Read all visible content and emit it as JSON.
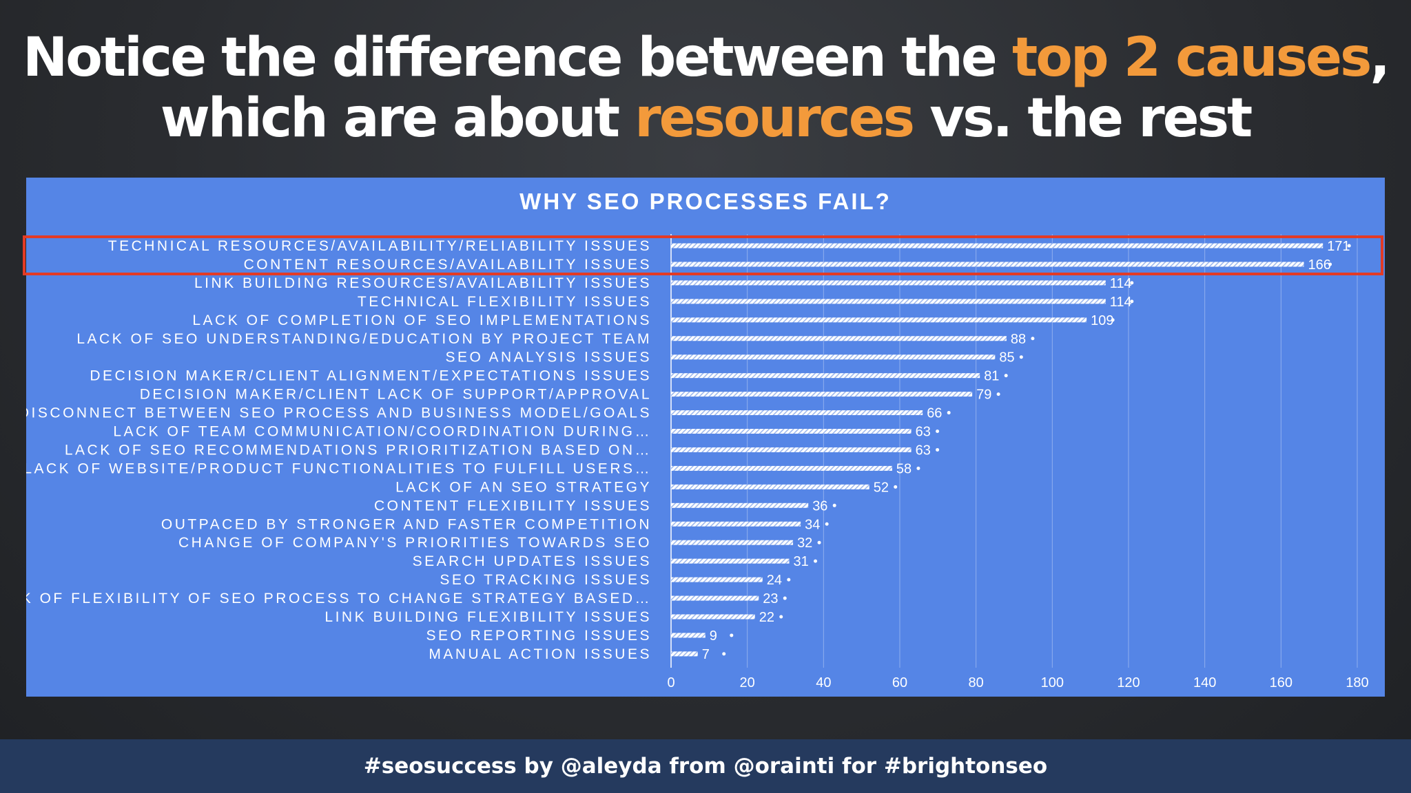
{
  "headline": {
    "line1_a": "Notice the difference between the ",
    "line1_hl": "top 2 causes",
    "line1_b": ",",
    "line2_a": "which are about ",
    "line2_hl": "resources",
    "line2_b": " vs. the rest"
  },
  "footer": {
    "text": "#seosuccess by @aleyda from @orainti for #brightonseo"
  },
  "colors": {
    "accent": "#f39a3b",
    "panel": "#5585e6",
    "highlight": "#e33b25",
    "footer": "#253a5e"
  },
  "chart_data": {
    "type": "bar",
    "orientation": "horizontal",
    "title": "WHY SEO PROCESSES FAIL?",
    "xlim": [
      0,
      180
    ],
    "xticks": [
      0,
      20,
      40,
      60,
      80,
      100,
      120,
      140,
      160,
      180
    ],
    "grid": true,
    "categories": [
      "TECHNICAL RESOURCES/AVAILABILITY/RELIABILITY ISSUES",
      "CONTENT RESOURCES/AVAILABILITY ISSUES",
      "LINK BUILDING RESOURCES/AVAILABILITY ISSUES",
      "TECHNICAL FLEXIBILITY ISSUES",
      "LACK OF COMPLETION OF SEO IMPLEMENTATIONS",
      "LACK OF SEO UNDERSTANDING/EDUCATION BY PROJECT TEAM",
      "SEO ANALYSIS ISSUES",
      "DECISION MAKER/CLIENT ALIGNMENT/EXPECTATIONS ISSUES",
      "DECISION MAKER/CLIENT LACK OF SUPPORT/APPROVAL",
      "DISCONNECT BETWEEN SEO PROCESS AND BUSINESS MODEL/GOALS",
      "LACK OF TEAM COMMUNICATION/COORDINATION DURING…",
      "LACK OF SEO RECOMMENDATIONS PRIORITIZATION BASED ON…",
      "LACK OF WEBSITE/PRODUCT FUNCTIONALITIES TO FULFILL USERS…",
      "LACK OF AN SEO STRATEGY",
      "CONTENT FLEXIBILITY ISSUES",
      "OUTPACED BY STRONGER AND FASTER COMPETITION",
      "CHANGE OF COMPANY'S PRIORITIES TOWARDS SEO",
      "SEARCH UPDATES ISSUES",
      "SEO TRACKING ISSUES",
      "LACK OF FLEXIBILITY OF SEO PROCESS TO CHANGE STRATEGY BASED…",
      "LINK BUILDING FLEXIBILITY ISSUES",
      "SEO REPORTING ISSUES",
      "MANUAL ACTION ISSUES"
    ],
    "values": [
      171,
      166,
      114,
      114,
      109,
      88,
      85,
      81,
      79,
      66,
      63,
      63,
      58,
      52,
      36,
      34,
      32,
      31,
      24,
      23,
      22,
      9,
      7
    ],
    "highlighted_indices": [
      0,
      1
    ]
  }
}
